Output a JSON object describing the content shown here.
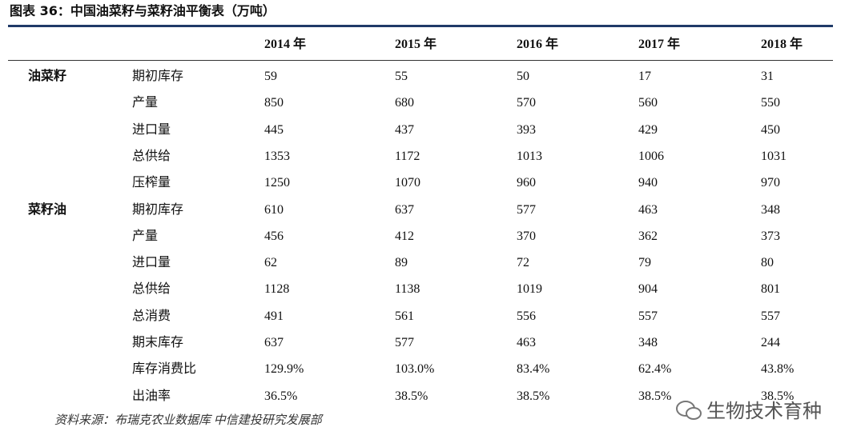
{
  "header": {
    "title": "图表 36：中国油菜籽与菜籽油平衡表（万吨）"
  },
  "table": {
    "columns": [
      "2014 年",
      "2015 年",
      "2016 年",
      "2017 年",
      "2018 年"
    ],
    "groups": [
      {
        "label": "油菜籽",
        "rows": [
          {
            "item": "期初库存",
            "values": [
              59,
              55,
              50,
              17,
              31
            ]
          },
          {
            "item": "产量",
            "values": [
              850,
              680,
              570,
              560,
              550
            ]
          },
          {
            "item": "进口量",
            "values": [
              445,
              437,
              393,
              429,
              450
            ]
          },
          {
            "item": "总供给",
            "values": [
              1353,
              1172,
              1013,
              1006,
              1031
            ]
          },
          {
            "item": "压榨量",
            "values": [
              1250,
              1070,
              960,
              940,
              970
            ]
          }
        ]
      },
      {
        "label": "菜籽油",
        "rows": [
          {
            "item": "期初库存",
            "values": [
              610,
              637,
              577,
              463,
              348
            ]
          },
          {
            "item": "产量",
            "values": [
              456,
              412,
              370,
              362,
              373
            ]
          },
          {
            "item": "进口量",
            "values": [
              62,
              89,
              72,
              79,
              80
            ]
          },
          {
            "item": "总供给",
            "values": [
              1128,
              1138,
              1019,
              904,
              801
            ]
          },
          {
            "item": "总消费",
            "values": [
              491,
              561,
              556,
              557,
              557
            ]
          },
          {
            "item": "期末库存",
            "values": [
              637,
              577,
              463,
              348,
              244
            ]
          },
          {
            "item": "库存消费比",
            "values": [
              "129.9%",
              "103.0%",
              "83.4%",
              "62.4%",
              "43.8%"
            ]
          },
          {
            "item": "出油率",
            "values": [
              "36.5%",
              "38.5%",
              "38.5%",
              "38.5%",
              "38.5%"
            ]
          }
        ]
      }
    ]
  },
  "source": "资料来源：布瑞克农业数据库 中信建投研究发展部",
  "watermark": "生物技术育种"
}
